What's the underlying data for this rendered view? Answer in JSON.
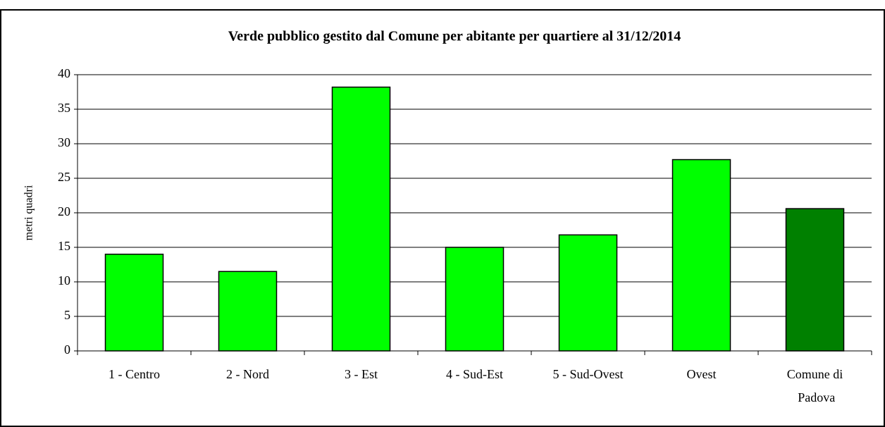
{
  "chart_data": {
    "type": "bar",
    "title": "Verde pubblico gestito dal Comune per abitante per quartiere al 31/12/2014",
    "y_label": "metri quadri",
    "categories": [
      "1 - Centro",
      "2 - Nord",
      "3 - Est",
      "4 - Sud-Est",
      "5 - Sud-Ovest",
      "Ovest",
      "Comune di Padova"
    ],
    "values": [
      14,
      11.5,
      38.2,
      15,
      16.8,
      27.7,
      20.6
    ],
    "colors": [
      "#00ff00",
      "#00ff00",
      "#00ff00",
      "#00ff00",
      "#00ff00",
      "#00ff00",
      "#008000"
    ],
    "ylim": [
      0,
      40
    ],
    "yticks": [
      0,
      5,
      10,
      15,
      20,
      25,
      30,
      35,
      40
    ],
    "grid": true
  }
}
